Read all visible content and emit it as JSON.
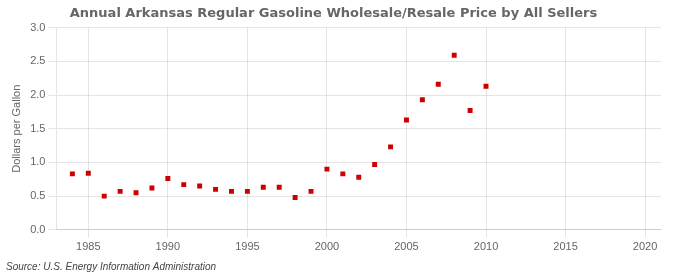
{
  "chart_data": {
    "type": "scatter",
    "title": "Annual Arkansas Regular Gasoline Wholesale/Resale Price by All Sellers",
    "ylabel": "Dollars per Gallon",
    "annotations": [
      "Source: U.S. Energy Information Administration"
    ],
    "x": [
      1984,
      1985,
      1986,
      1987,
      1988,
      1989,
      1990,
      1991,
      1992,
      1993,
      1994,
      1995,
      1996,
      1997,
      1998,
      1999,
      2000,
      2001,
      2002,
      2003,
      2004,
      2005,
      2006,
      2007,
      2008,
      2009,
      2010
    ],
    "values": [
      0.83,
      0.84,
      0.5,
      0.57,
      0.55,
      0.62,
      0.76,
      0.67,
      0.65,
      0.6,
      0.57,
      0.57,
      0.63,
      0.63,
      0.48,
      0.57,
      0.9,
      0.83,
      0.78,
      0.97,
      1.23,
      1.63,
      1.93,
      2.16,
      2.59,
      1.77,
      2.13
    ],
    "color": "#cc0000",
    "marker": "square",
    "xlim": [
      1983,
      2021
    ],
    "xticks": [
      1985,
      1990,
      1995,
      2000,
      2005,
      2010,
      2015,
      2020
    ],
    "ylim": [
      0.0,
      3.0
    ],
    "yticks": [
      {
        "value": 0,
        "label": "0.0"
      },
      0.5,
      {
        "value": 1,
        "label": "1.0"
      },
      1.5,
      {
        "value": 2,
        "label": "2.0"
      },
      2.5,
      {
        "value": 3,
        "label": "3.0"
      }
    ],
    "grid": true
  }
}
